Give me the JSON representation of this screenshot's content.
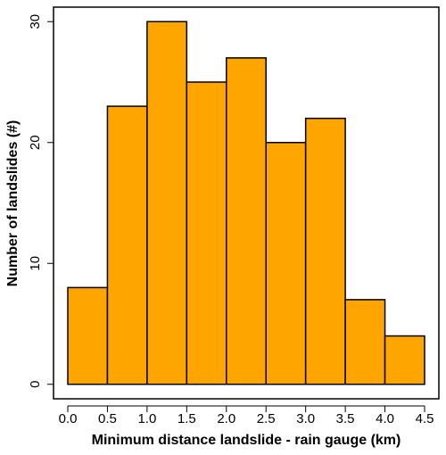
{
  "chart_data": {
    "type": "histogram",
    "xlabel": "Minimum distance landslide - rain gauge (km)",
    "ylabel": "Number of landslides (#)",
    "bins": [
      0,
      0.5,
      1,
      1.5,
      2,
      2.5,
      3,
      3.5,
      4,
      4.5
    ],
    "values": [
      8,
      23,
      30,
      25,
      27,
      20,
      22,
      7,
      4
    ],
    "color": "#ffa500",
    "xlim": [
      -0.18,
      4.68
    ],
    "ylim": [
      -1.2,
      31.2
    ],
    "xticks": [
      {
        "value": 0,
        "label": "0.0"
      },
      0.5,
      {
        "value": 1,
        "label": "1.0"
      },
      1.5,
      {
        "value": 2,
        "label": "2.0"
      },
      2.5,
      {
        "value": 3,
        "label": "3.0"
      },
      3.5,
      {
        "value": 4,
        "label": "4.0"
      },
      4.5
    ],
    "yticks": [
      0,
      10,
      20,
      30
    ]
  }
}
